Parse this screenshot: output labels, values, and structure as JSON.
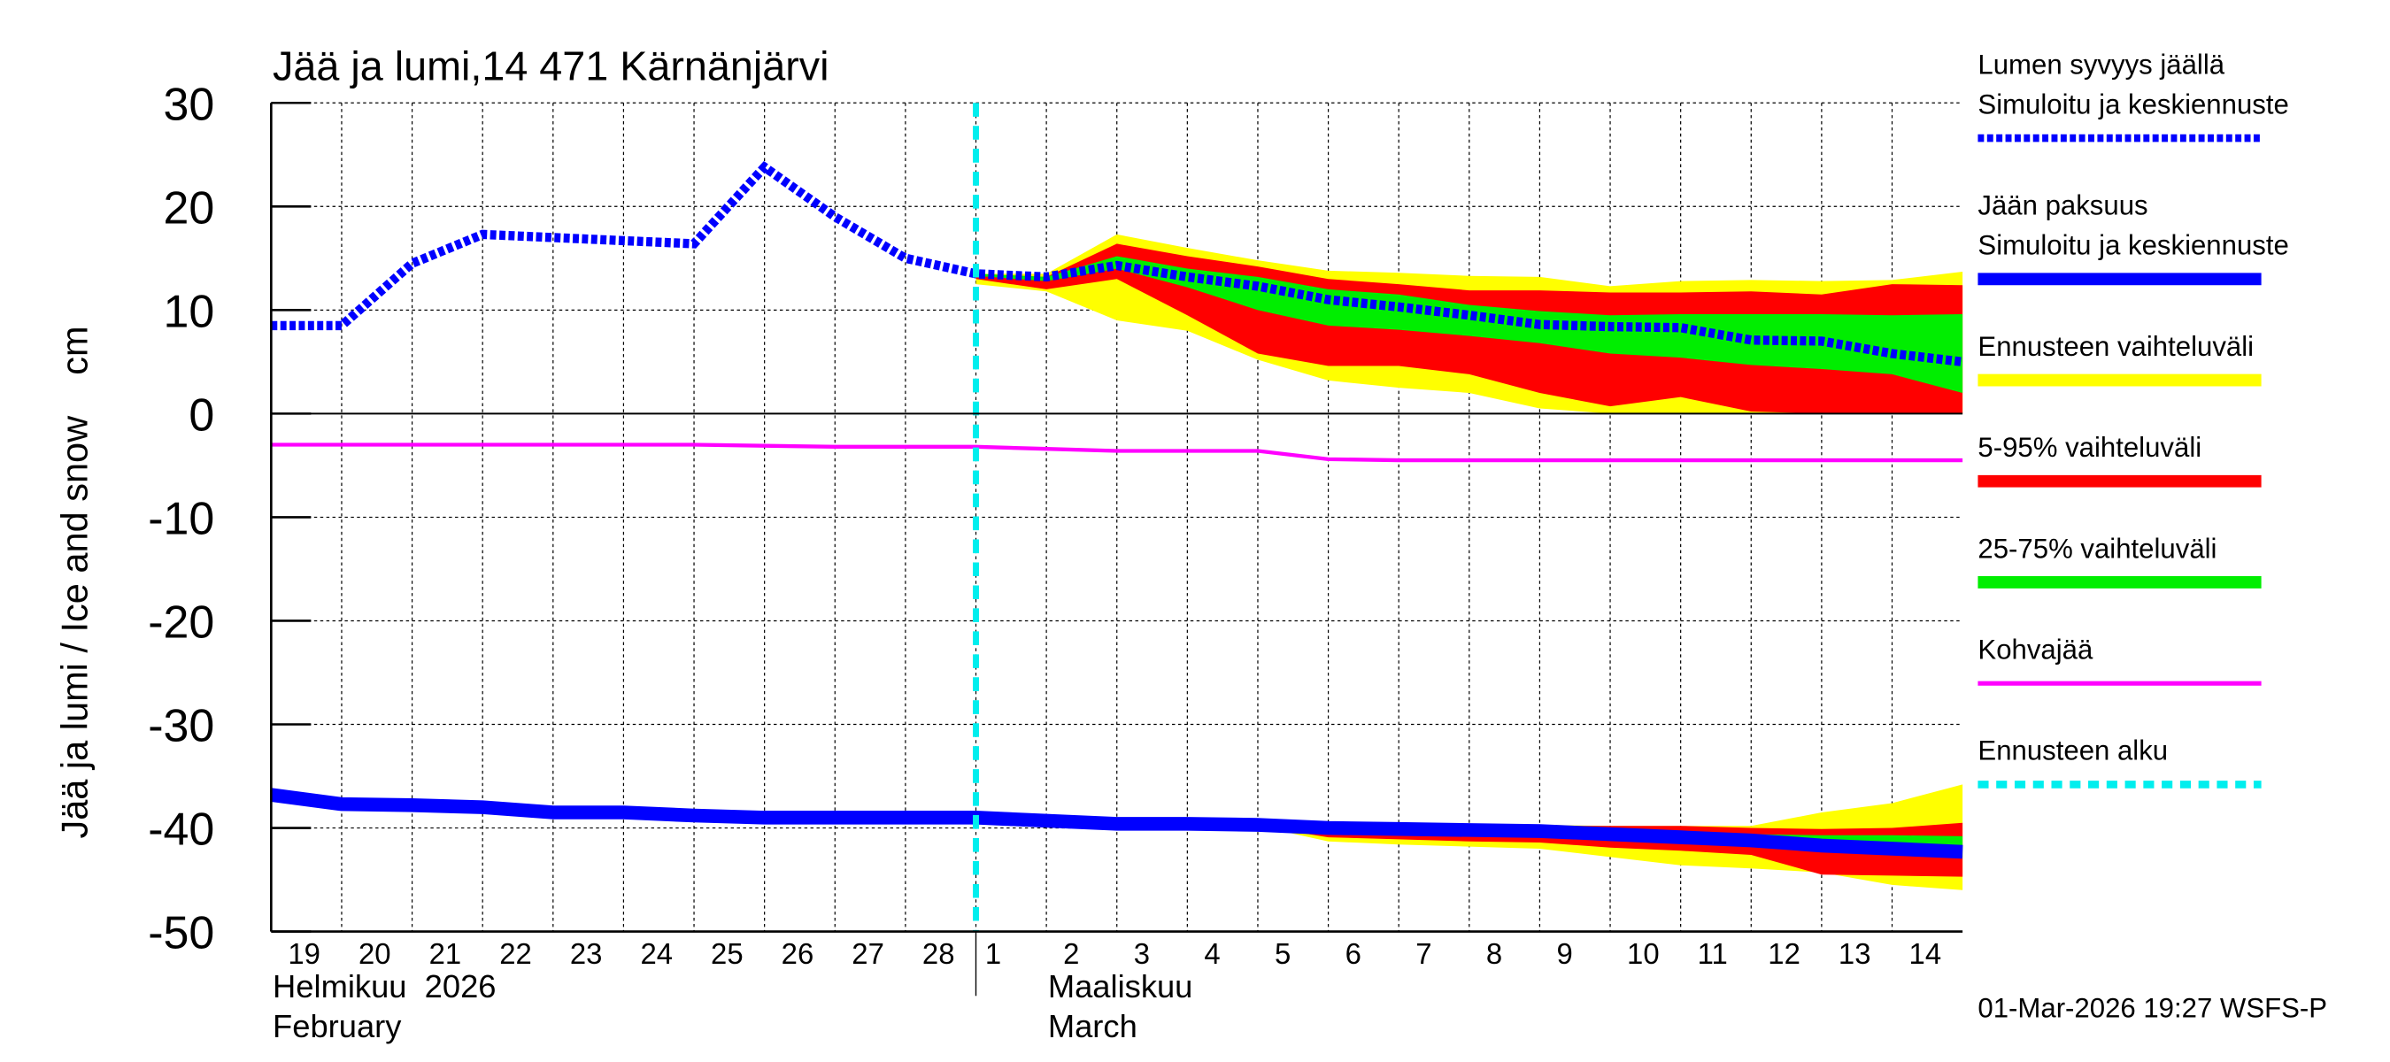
{
  "chart_data": {
    "type": "area",
    "title": "Jää ja lumi,14 471 Kärnänjärvi",
    "ylabel": "Jää ja lumi / Ice and snow    cm",
    "ylim": [
      -50,
      30
    ],
    "yticks": [
      30,
      20,
      10,
      0,
      -10,
      -20,
      -30,
      -40,
      -50
    ],
    "grid": true,
    "legend_placement": "right",
    "x_day_labels": [
      "19",
      "20",
      "21",
      "22",
      "23",
      "24",
      "25",
      "26",
      "27",
      "28",
      "1",
      "2",
      "3",
      "4",
      "5",
      "6",
      "7",
      "8",
      "9",
      "10",
      "11",
      "12",
      "13",
      "14"
    ],
    "x_dates": [
      "2026-02-19",
      "2026-02-20",
      "2026-02-21",
      "2026-02-22",
      "2026-02-23",
      "2026-02-24",
      "2026-02-25",
      "2026-02-26",
      "2026-02-27",
      "2026-02-28",
      "2026-03-01",
      "2026-03-02",
      "2026-03-03",
      "2026-03-04",
      "2026-03-05",
      "2026-03-06",
      "2026-03-07",
      "2026-03-08",
      "2026-03-09",
      "2026-03-10",
      "2026-03-11",
      "2026-03-12",
      "2026-03-13",
      "2026-03-14",
      "2026-03-15"
    ],
    "month_labels": [
      {
        "fi": "Helmikuu  2026",
        "en": "February"
      },
      {
        "fi": "Maaliskuu",
        "en": "March"
      }
    ],
    "forecast_start": "2026-03-01",
    "snow_depth": [
      8.5,
      8.5,
      14.5,
      17.3,
      17,
      16.7,
      16.4,
      23.8,
      19,
      15,
      13.5,
      13.2,
      14.3,
      13.2,
      12.3,
      11,
      10.3,
      9.5,
      8.6,
      8.4,
      8.3,
      7.1,
      7,
      5.8,
      5
    ],
    "snow_bands": {
      "start": "2026-03-01",
      "yellow_upper": [
        13.5,
        13.5,
        17.3,
        16,
        14.8,
        13.8,
        13.6,
        13.3,
        13.2,
        12.3,
        12.8,
        12.9,
        12.8,
        12.9,
        13.7
      ],
      "yellow_lower": [
        12.5,
        11.8,
        9,
        8,
        5.2,
        3.2,
        2.5,
        2,
        0.5,
        0,
        0,
        0,
        0,
        0,
        0
      ],
      "red_upper": [
        13.5,
        13.2,
        16.4,
        15.2,
        14.2,
        13,
        12.5,
        11.9,
        11.9,
        11.7,
        11.7,
        11.8,
        11.5,
        12.5,
        12.4
      ],
      "red_lower": [
        13,
        12,
        13,
        9.5,
        5.8,
        4.6,
        4.6,
        3.8,
        2,
        0.7,
        1.6,
        0.2,
        0,
        0,
        0
      ],
      "green_upper": [
        13.5,
        13.2,
        15.2,
        14,
        13.2,
        12,
        11.5,
        10.5,
        9.9,
        9.5,
        9.6,
        9.6,
        9.6,
        9.5,
        9.6
      ],
      "green_lower": [
        13.3,
        12.8,
        14,
        12.2,
        10,
        8.5,
        8.1,
        7.5,
        6.8,
        5.8,
        5.4,
        4.7,
        4.3,
        3.8,
        2
      ]
    },
    "ice_thickness": [
      -36.8,
      -37.7,
      -37.8,
      -38,
      -38.5,
      -38.5,
      -38.8,
      -39,
      -39,
      -39,
      -39,
      -39.3,
      -39.6,
      -39.6,
      -39.7,
      -40,
      -40.1,
      -40.2,
      -40.3,
      -40.6,
      -40.9,
      -41.2,
      -41.7,
      -42,
      -42.3
    ],
    "ice_bands": {
      "start": "2026-03-05",
      "yellow_upper": [
        -39.7,
        -39.6,
        -39.6,
        -39.6,
        -39.7,
        -39.8,
        -39.8,
        -39.8,
        -38.5,
        -37.6,
        -35.8
      ],
      "yellow_lower": [
        -39.8,
        -41.3,
        -41.6,
        -41.8,
        -42,
        -42.8,
        -43.6,
        -43.9,
        -44.3,
        -45.5,
        -46
      ],
      "red_upper": [
        -39.7,
        -39.7,
        -39.7,
        -39.7,
        -39.8,
        -39.8,
        -39.8,
        -40,
        -40.1,
        -40,
        -39.5
      ],
      "red_lower": [
        -39.8,
        -40.9,
        -41.1,
        -41.3,
        -41.4,
        -41.9,
        -42.2,
        -42.6,
        -44.5,
        -44.6,
        -44.7
      ],
      "green_upper": [
        -39.7,
        -39.8,
        -39.9,
        -40,
        -40.1,
        -40.2,
        -40.4,
        -40.6,
        -40.7,
        -40.7,
        -40.8
      ],
      "green_lower": [
        -39.8,
        -40.2,
        -40.3,
        -40.5,
        -40.7,
        -41,
        -41.4,
        -41.7,
        -42.2,
        -42.5,
        -42.8
      ]
    },
    "slush_ice": [
      -3,
      -3,
      -3,
      -3,
      -3,
      -3,
      -3,
      -3.1,
      -3.2,
      -3.2,
      -3.2,
      -3.4,
      -3.6,
      -3.6,
      -3.6,
      -4.4,
      -4.5,
      -4.5,
      -4.5,
      -4.5,
      -4.5,
      -4.5,
      -4.5,
      -4.5,
      -4.5
    ],
    "legend": [
      {
        "lines": [
          "Lumen syvyys jäällä",
          "Simuloitu ja keskiennuste"
        ],
        "color": "#0000ff",
        "style": "dotted"
      },
      {
        "lines": [
          "Jään paksuus",
          "Simuloitu ja keskiennuste"
        ],
        "color": "#0000ff",
        "style": "thick"
      },
      {
        "lines": [
          "Ennusteen vaihteluväli"
        ],
        "color": "#ffff00",
        "style": "thick"
      },
      {
        "lines": [
          "5-95% vaihteluväli"
        ],
        "color": "#ff0000",
        "style": "thick"
      },
      {
        "lines": [
          "25-75% vaihteluväli"
        ],
        "color": "#00ee00",
        "style": "thick"
      },
      {
        "lines": [
          "Kohvajää"
        ],
        "color": "#ff00ff",
        "style": "thin"
      },
      {
        "lines": [
          "Ennusteen alku"
        ],
        "color": "#00eeee",
        "style": "dotted"
      }
    ],
    "footer": "01-Mar-2026 19:27 WSFS-P"
  }
}
